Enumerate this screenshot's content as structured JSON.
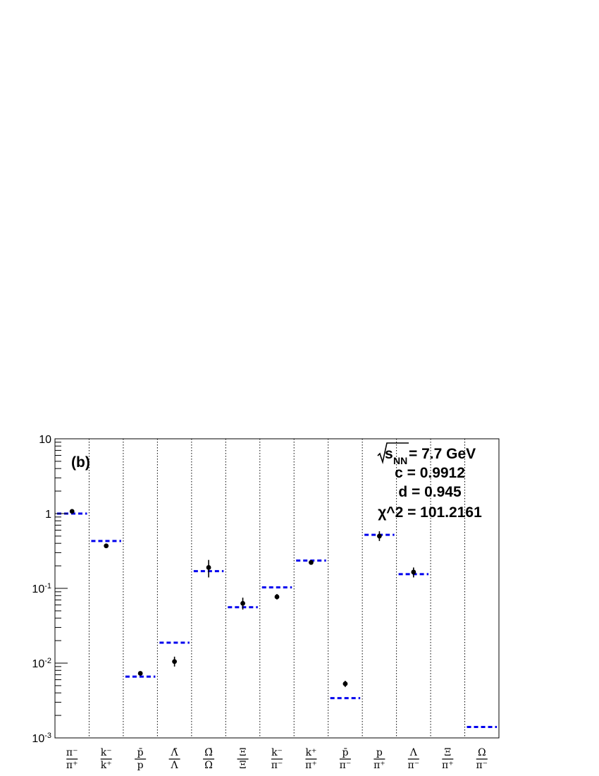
{
  "panel_label": "(b)",
  "annotations": {
    "energy_sub": "NN",
    "energy_value": " = 7.7 GeV",
    "c_text": "c = 0.9912",
    "d_text": "d = 0.945",
    "chi_text": "χ^2 = 101.2161"
  },
  "colors": {
    "model": "#0000ee",
    "data": "#000000",
    "axis": "#000000"
  },
  "chart_data": {
    "type": "scatter",
    "title": "",
    "xlabel": "",
    "ylabel": "",
    "yscale": "log",
    "ylim": [
      0.001,
      10
    ],
    "y_ticks": [
      {
        "value": 10,
        "base": "10",
        "exp": ""
      },
      {
        "value": 1,
        "base": "1",
        "exp": ""
      },
      {
        "value": 0.1,
        "base": "10",
        "exp": "-1"
      },
      {
        "value": 0.01,
        "base": "10",
        "exp": "-2"
      },
      {
        "value": 0.001,
        "base": "10",
        "exp": "-3"
      }
    ],
    "categories": [
      {
        "num": "π⁻",
        "den": "π⁺"
      },
      {
        "num": "k⁻",
        "den": "k⁺"
      },
      {
        "num": "p̄",
        "den": "p"
      },
      {
        "num": "Λ̄",
        "den": "Λ"
      },
      {
        "num": "Ω̄",
        "den": "Ω"
      },
      {
        "num": "Ξ̄",
        "den": "Ξ"
      },
      {
        "num": "k⁻",
        "den": "π⁻"
      },
      {
        "num": "k⁺",
        "den": "π⁺"
      },
      {
        "num": "p̄",
        "den": "π⁻"
      },
      {
        "num": "p",
        "den": "π⁺"
      },
      {
        "num": "Λ",
        "den": "π⁻"
      },
      {
        "num": "Ξ̄",
        "den": "π⁺"
      },
      {
        "num": "Ω",
        "den": "π⁻"
      }
    ],
    "grid_x": true,
    "series": [
      {
        "name": "",
        "kind": "data",
        "values": [
          1.07,
          0.37,
          0.0073,
          0.0105,
          0.19,
          0.063,
          0.077,
          0.222,
          0.0053,
          0.5,
          0.165,
          null,
          null
        ],
        "err_low": [
          1.02,
          0.36,
          0.0071,
          0.009,
          0.14,
          0.052,
          0.071,
          0.21,
          0.0048,
          0.43,
          0.14,
          null,
          null
        ],
        "err_high": [
          1.12,
          0.38,
          0.0075,
          0.0122,
          0.24,
          0.075,
          0.084,
          0.236,
          0.0058,
          0.58,
          0.19,
          null,
          null
        ]
      },
      {
        "name": "",
        "kind": "model",
        "values": [
          1.0,
          0.43,
          0.0066,
          0.0188,
          0.17,
          0.056,
          0.103,
          0.235,
          0.0034,
          0.52,
          0.155,
          null,
          0.0014
        ]
      }
    ]
  }
}
